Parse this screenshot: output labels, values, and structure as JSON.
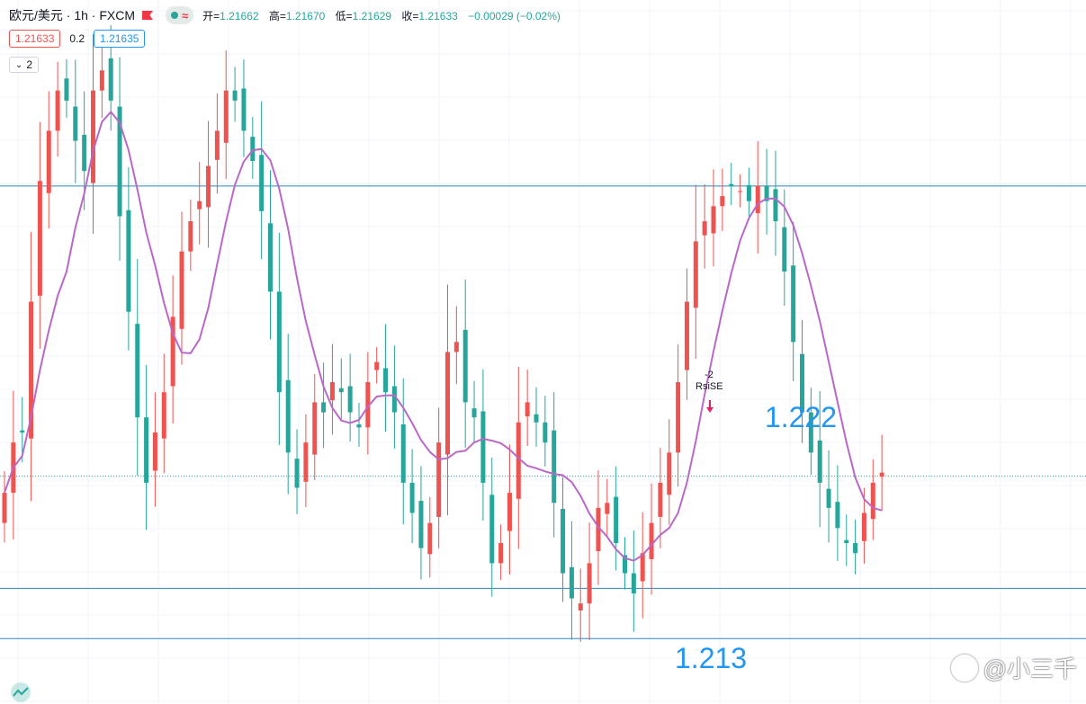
{
  "header": {
    "symbol": "欧元/美元 · 1h · FXCM",
    "ohlc": [
      {
        "label": "开=",
        "value": "1.21662"
      },
      {
        "label": "高=",
        "value": "1.21670"
      },
      {
        "label": "低=",
        "value": "1.21629"
      },
      {
        "label": "收=",
        "value": "1.21633"
      }
    ],
    "change": "−0.00029 (−0.02%)"
  },
  "quote": {
    "bid": "1.21633",
    "spread": "0.2",
    "ask": "1.21635"
  },
  "indicator_count": "2",
  "annotations": {
    "level_high": "1.222",
    "level_low": "1.213",
    "signal_value": "-2",
    "signal_name": "RsiSE"
  },
  "watermark": "@小三千",
  "colors": {
    "up": "#ef5350",
    "down": "#26a69a",
    "ma": "#ba68c8",
    "level": "#2e86c1",
    "accent": "#2196f3"
  },
  "icons": {
    "flag": "flag-icon",
    "dot": "status-dot-icon",
    "wave": "wave-icon",
    "chevron": "chevron-down-icon",
    "logo": "tradingview-logo-icon"
  },
  "chart_data": {
    "type": "candlestick",
    "x_count": 100,
    "ylim": [
      1.2118,
      1.2258
    ],
    "horizontal_levels": [
      1.2221,
      1.2141,
      1.2131
    ],
    "current_price": 1.21633,
    "ohlc_close_path": [
      1.216,
      1.217,
      1.2172,
      1.2198,
      1.2222,
      1.2232,
      1.224,
      1.2238,
      1.223,
      1.2224,
      1.224,
      1.2244,
      1.2238,
      1.2215,
      1.2196,
      1.2175,
      1.2162,
      1.2172,
      1.218,
      1.2195,
      1.2208,
      1.2214,
      1.2218,
      1.2225,
      1.2232,
      1.224,
      1.2238,
      1.2232,
      1.2226,
      1.2216,
      1.22,
      1.218,
      1.2168,
      1.2161,
      1.217,
      1.2178,
      1.2176,
      1.2182,
      1.218,
      1.2176,
      1.2173,
      1.2182,
      1.2186,
      1.218,
      1.2176,
      1.2162,
      1.2156,
      1.2149,
      1.2154,
      1.217,
      1.2188,
      1.219,
      1.2178,
      1.2175,
      1.2162,
      1.2146,
      1.215,
      1.216,
      1.2174,
      1.2178,
      1.2174,
      1.217,
      1.2158,
      1.2144,
      1.2139,
      1.2138,
      1.2146,
      1.2157,
      1.2158,
      1.215,
      1.2144,
      1.214,
      1.2148,
      1.2154,
      1.2162,
      1.2168,
      1.2182,
      1.2198,
      1.221,
      1.2214,
      1.2217,
      1.2219,
      1.2221,
      1.222,
      1.2218,
      1.2221,
      1.2218,
      1.2214,
      1.2204,
      1.219,
      1.2176,
      1.2168,
      1.2162,
      1.2157,
      1.2153,
      1.215,
      1.2148,
      1.2156,
      1.2162,
      1.2164
    ]
  }
}
